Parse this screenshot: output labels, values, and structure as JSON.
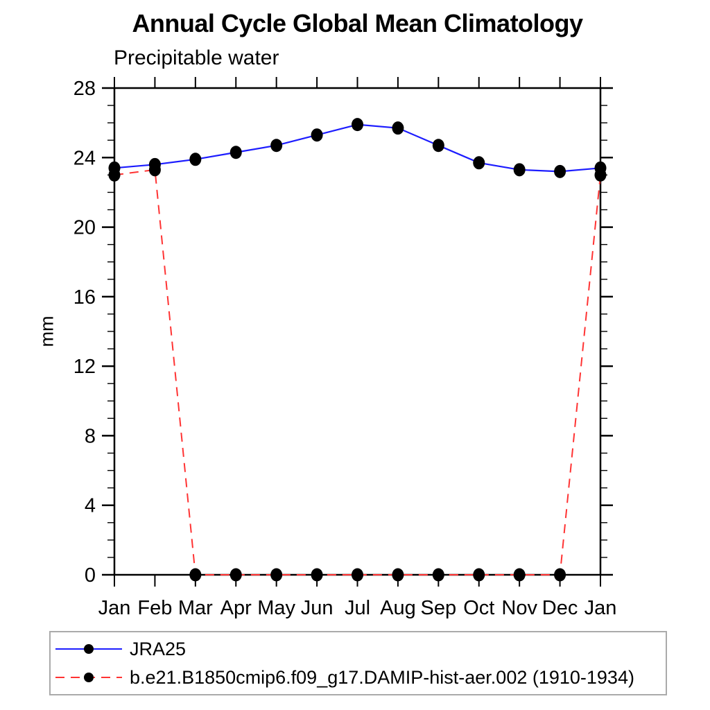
{
  "chart_data": {
    "type": "line",
    "title": "Annual Cycle Global Mean Climatology",
    "subtitle": "Precipitable water",
    "ylabel": "mm",
    "ylim": [
      0,
      28
    ],
    "ytick_step": 4,
    "yminor_step": 1,
    "grid": false,
    "legend_position": "bottom box, below x-axis",
    "categories": [
      "Jan",
      "Feb",
      "Mar",
      "Apr",
      "May",
      "Jun",
      "Jul",
      "Aug",
      "Sep",
      "Oct",
      "Nov",
      "Dec",
      "Jan"
    ],
    "series": [
      {
        "name": "JRA25",
        "color": "#1c1cff",
        "line_style": "solid",
        "marker": "filled-circle",
        "marker_color": "#000000",
        "values": [
          23.4,
          23.6,
          23.9,
          24.3,
          24.7,
          25.3,
          25.9,
          25.7,
          24.7,
          23.7,
          23.3,
          23.2,
          23.4
        ]
      },
      {
        "name": "b.e21.B1850cmip6.f09_g17.DAMIP-hist-aer.002 (1910-1934)",
        "color": "#ff3333",
        "line_style": "dashed",
        "marker": "filled-circle",
        "marker_color": "#000000",
        "values": [
          23.0,
          23.3,
          0.0,
          0.0,
          0.0,
          0.0,
          0.0,
          0.0,
          0.0,
          0.0,
          0.0,
          0.0,
          23.0
        ]
      }
    ]
  },
  "colors": {
    "background": "#ffffff",
    "axis": "#000000",
    "text": "#000000",
    "legend_border": "#aaaaaa"
  }
}
